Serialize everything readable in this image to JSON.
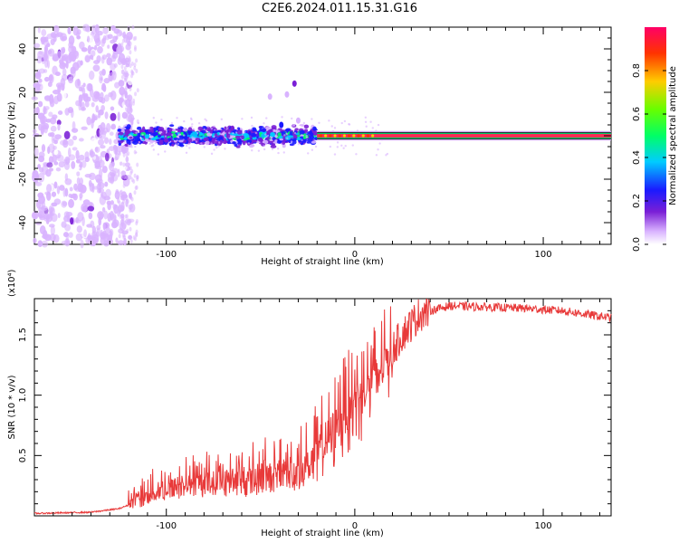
{
  "figure": {
    "title": "C2E6.2024.011.15.31.G16"
  },
  "chart_data": [
    {
      "type": "heatmap",
      "xlabel": "Height of straight line (km)",
      "ylabel": "Frequency (Hz)",
      "xlim": [
        -170,
        136
      ],
      "ylim": [
        -50,
        50
      ],
      "xticks": [
        -100,
        0,
        100
      ],
      "yticks": [
        -40,
        -20,
        0,
        20,
        40
      ],
      "colorbar": {
        "label": "Normalized spectral amplitude",
        "range": [
          0,
          1
        ],
        "ticks": [
          "0.0",
          "0.2",
          "0.4",
          "0.6",
          "0.8"
        ],
        "colors": [
          "#ffffff",
          "#d9b3ff",
          "#7a1fd6",
          "#1a1aff",
          "#00ccff",
          "#00ff66",
          "#66ff00",
          "#ffcc00",
          "#ff3300",
          "#ff0066"
        ]
      },
      "regions": [
        {
          "name": "noise",
          "x": [
            -170,
            -118
          ],
          "freq_spread": 50,
          "amplitude": "low"
        },
        {
          "name": "track-onset",
          "x": [
            -125,
            -20
          ],
          "freq_center": 0,
          "freq_spread": 4,
          "amplitude": "medium"
        },
        {
          "name": "strong-line",
          "x": [
            -20,
            136
          ],
          "freq_center": 0,
          "freq_spread": 1,
          "amplitude": "high"
        }
      ],
      "annotations": [
        {
          "x": -40,
          "y": 20,
          "note": "isolated blobs"
        }
      ]
    },
    {
      "type": "line",
      "xlabel": "Height of straight line (km)",
      "ylabel": "SNR (10 * v/v)",
      "y_multiplier": "(x10⁴)",
      "xlim": [
        -170,
        136
      ],
      "ylim": [
        0,
        1.8
      ],
      "xticks": [
        -100,
        0,
        100
      ],
      "yticks": [
        "0.5",
        "1.0",
        "1.5"
      ],
      "color": "#e83a3a",
      "profile": {
        "x": [
          -170,
          -140,
          -125,
          -115,
          -105,
          -95,
          -80,
          -60,
          -40,
          -25,
          -15,
          -5,
          5,
          15,
          25,
          35,
          50,
          70,
          90,
          110,
          136
        ],
        "y": [
          0.02,
          0.03,
          0.06,
          0.12,
          0.2,
          0.24,
          0.27,
          0.28,
          0.33,
          0.4,
          0.62,
          0.9,
          1.05,
          1.25,
          1.5,
          1.68,
          1.74,
          1.73,
          1.72,
          1.7,
          1.64
        ]
      }
    }
  ]
}
